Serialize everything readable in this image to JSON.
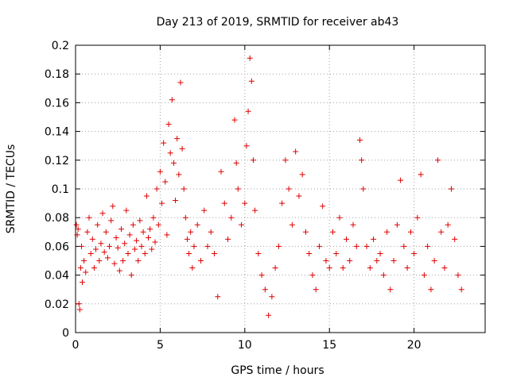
{
  "chart_data": {
    "type": "scatter",
    "title": "Day 213 of 2019, SRMTID for receiver ab43",
    "xlabel": "GPS time / hours",
    "ylabel": "SRMTID / TECUs",
    "xlim": [
      0,
      24.2
    ],
    "ylim": [
      0,
      0.2
    ],
    "xticks": [
      "0",
      "5",
      "10",
      "15",
      "20"
    ],
    "yticks": [
      "0",
      "0.02",
      "0.04",
      "0.06",
      "0.08",
      "0.1",
      "0.12",
      "0.14",
      "0.16",
      "0.18",
      "0.2"
    ],
    "grid": true,
    "marker": "+",
    "color": "#e00000",
    "series": [
      {
        "name": "ab43",
        "points": [
          [
            0.05,
            0.075
          ],
          [
            0.1,
            0.068
          ],
          [
            0.15,
            0.072
          ],
          [
            0.2,
            0.02
          ],
          [
            0.25,
            0.016
          ],
          [
            0.3,
            0.045
          ],
          [
            0.35,
            0.06
          ],
          [
            0.4,
            0.035
          ],
          [
            0.5,
            0.05
          ],
          [
            0.6,
            0.042
          ],
          [
            0.7,
            0.07
          ],
          [
            0.8,
            0.08
          ],
          [
            0.9,
            0.055
          ],
          [
            1.0,
            0.065
          ],
          [
            1.1,
            0.045
          ],
          [
            1.2,
            0.058
          ],
          [
            1.3,
            0.075
          ],
          [
            1.4,
            0.05
          ],
          [
            1.5,
            0.062
          ],
          [
            1.6,
            0.083
          ],
          [
            1.7,
            0.056
          ],
          [
            1.8,
            0.07
          ],
          [
            1.9,
            0.052
          ],
          [
            2.0,
            0.06
          ],
          [
            2.1,
            0.078
          ],
          [
            2.2,
            0.088
          ],
          [
            2.3,
            0.048
          ],
          [
            2.4,
            0.066
          ],
          [
            2.5,
            0.059
          ],
          [
            2.6,
            0.043
          ],
          [
            2.7,
            0.072
          ],
          [
            2.8,
            0.05
          ],
          [
            2.9,
            0.062
          ],
          [
            3.0,
            0.085
          ],
          [
            3.1,
            0.055
          ],
          [
            3.2,
            0.068
          ],
          [
            3.3,
            0.04
          ],
          [
            3.4,
            0.075
          ],
          [
            3.5,
            0.058
          ],
          [
            3.6,
            0.064
          ],
          [
            3.7,
            0.05
          ],
          [
            3.8,
            0.078
          ],
          [
            3.9,
            0.06
          ],
          [
            4.0,
            0.07
          ],
          [
            4.1,
            0.055
          ],
          [
            4.2,
            0.095
          ],
          [
            4.3,
            0.066
          ],
          [
            4.4,
            0.072
          ],
          [
            4.5,
            0.058
          ],
          [
            4.6,
            0.08
          ],
          [
            4.7,
            0.063
          ],
          [
            4.8,
            0.1
          ],
          [
            4.9,
            0.075
          ],
          [
            5.0,
            0.112
          ],
          [
            5.1,
            0.09
          ],
          [
            5.2,
            0.132
          ],
          [
            5.3,
            0.105
          ],
          [
            5.4,
            0.068
          ],
          [
            5.5,
            0.145
          ],
          [
            5.6,
            0.125
          ],
          [
            5.7,
            0.162
          ],
          [
            5.8,
            0.118
          ],
          [
            5.9,
            0.092
          ],
          [
            6.0,
            0.135
          ],
          [
            6.1,
            0.11
          ],
          [
            6.2,
            0.174
          ],
          [
            6.3,
            0.128
          ],
          [
            6.4,
            0.1
          ],
          [
            6.5,
            0.08
          ],
          [
            6.6,
            0.065
          ],
          [
            6.7,
            0.055
          ],
          [
            6.8,
            0.07
          ],
          [
            6.9,
            0.045
          ],
          [
            7.0,
            0.06
          ],
          [
            7.2,
            0.075
          ],
          [
            7.4,
            0.05
          ],
          [
            7.6,
            0.085
          ],
          [
            7.8,
            0.06
          ],
          [
            8.0,
            0.07
          ],
          [
            8.2,
            0.055
          ],
          [
            8.4,
            0.025
          ],
          [
            8.6,
            0.112
          ],
          [
            8.8,
            0.09
          ],
          [
            9.0,
            0.065
          ],
          [
            9.2,
            0.08
          ],
          [
            9.4,
            0.148
          ],
          [
            9.5,
            0.118
          ],
          [
            9.6,
            0.1
          ],
          [
            9.8,
            0.075
          ],
          [
            10.0,
            0.09
          ],
          [
            10.1,
            0.13
          ],
          [
            10.2,
            0.154
          ],
          [
            10.3,
            0.191
          ],
          [
            10.4,
            0.175
          ],
          [
            10.5,
            0.12
          ],
          [
            10.6,
            0.085
          ],
          [
            10.8,
            0.055
          ],
          [
            11.0,
            0.04
          ],
          [
            11.2,
            0.03
          ],
          [
            11.4,
            0.012
          ],
          [
            11.6,
            0.025
          ],
          [
            11.8,
            0.045
          ],
          [
            12.0,
            0.06
          ],
          [
            12.2,
            0.09
          ],
          [
            12.4,
            0.12
          ],
          [
            12.6,
            0.1
          ],
          [
            12.8,
            0.075
          ],
          [
            13.0,
            0.126
          ],
          [
            13.2,
            0.095
          ],
          [
            13.4,
            0.11
          ],
          [
            13.6,
            0.07
          ],
          [
            13.8,
            0.055
          ],
          [
            14.0,
            0.04
          ],
          [
            14.2,
            0.03
          ],
          [
            14.4,
            0.06
          ],
          [
            14.6,
            0.088
          ],
          [
            14.8,
            0.05
          ],
          [
            15.0,
            0.045
          ],
          [
            15.2,
            0.07
          ],
          [
            15.4,
            0.055
          ],
          [
            15.6,
            0.08
          ],
          [
            15.8,
            0.045
          ],
          [
            16.0,
            0.065
          ],
          [
            16.2,
            0.05
          ],
          [
            16.4,
            0.075
          ],
          [
            16.6,
            0.06
          ],
          [
            16.8,
            0.134
          ],
          [
            16.9,
            0.12
          ],
          [
            17.0,
            0.1
          ],
          [
            17.2,
            0.06
          ],
          [
            17.4,
            0.045
          ],
          [
            17.6,
            0.065
          ],
          [
            17.8,
            0.05
          ],
          [
            18.0,
            0.055
          ],
          [
            18.2,
            0.04
          ],
          [
            18.4,
            0.07
          ],
          [
            18.6,
            0.03
          ],
          [
            18.8,
            0.05
          ],
          [
            19.0,
            0.075
          ],
          [
            19.2,
            0.106
          ],
          [
            19.4,
            0.06
          ],
          [
            19.6,
            0.045
          ],
          [
            19.8,
            0.07
          ],
          [
            20.0,
            0.055
          ],
          [
            20.2,
            0.08
          ],
          [
            20.4,
            0.11
          ],
          [
            20.6,
            0.04
          ],
          [
            20.8,
            0.06
          ],
          [
            21.0,
            0.03
          ],
          [
            21.2,
            0.05
          ],
          [
            21.4,
            0.12
          ],
          [
            21.6,
            0.07
          ],
          [
            21.8,
            0.045
          ],
          [
            22.0,
            0.075
          ],
          [
            22.2,
            0.1
          ],
          [
            22.4,
            0.065
          ],
          [
            22.6,
            0.04
          ],
          [
            22.8,
            0.03
          ]
        ]
      }
    ]
  }
}
